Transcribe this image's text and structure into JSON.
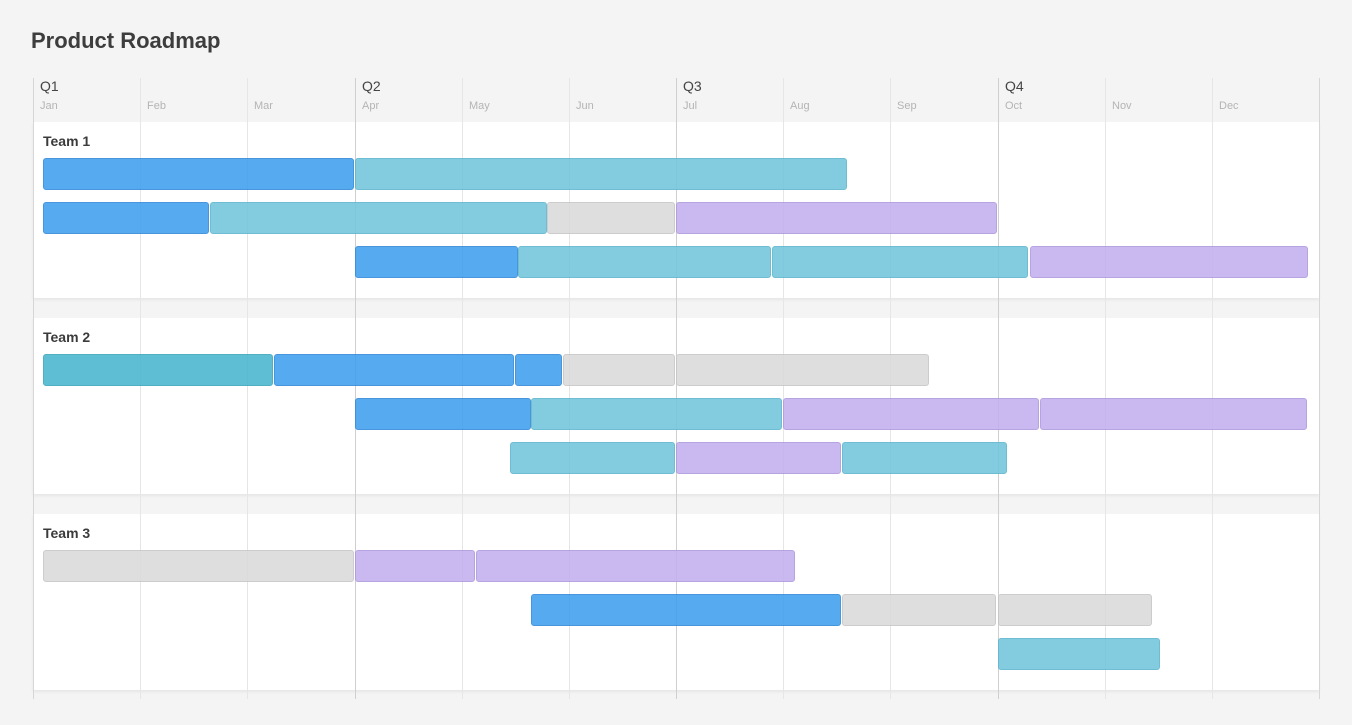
{
  "page": {
    "title": "Product Roadmap"
  },
  "quarters": [
    "Q1",
    "Q2",
    "Q3",
    "Q4"
  ],
  "months": [
    "Jan",
    "Feb",
    "Mar",
    "Apr",
    "May",
    "Jun",
    "Jul",
    "Aug",
    "Sep",
    "Oct",
    "Nov",
    "Dec"
  ],
  "colors": {
    "blue": "#3fa0ee",
    "teal": "#72c6dc",
    "cyan": "#47b6cf",
    "gray": "#dadada",
    "purple": "#c3b0ee"
  },
  "teams": [
    {
      "label": "Team 1",
      "rows": [
        [
          {
            "start": 0.0,
            "end": 3.0,
            "color": "blue"
          },
          {
            "start": 3.0,
            "end": 7.6,
            "color": "teal"
          }
        ],
        [
          {
            "start": 0.0,
            "end": 1.65,
            "color": "blue"
          },
          {
            "start": 1.65,
            "end": 4.8,
            "color": "teal"
          },
          {
            "start": 4.8,
            "end": 6.0,
            "color": "gray"
          },
          {
            "start": 6.0,
            "end": 9.0,
            "color": "purple"
          }
        ],
        [
          {
            "start": 3.0,
            "end": 4.53,
            "color": "blue"
          },
          {
            "start": 4.53,
            "end": 6.9,
            "color": "teal"
          },
          {
            "start": 6.9,
            "end": 9.3,
            "color": "teal"
          },
          {
            "start": 9.3,
            "end": 11.9,
            "color": "purple"
          }
        ]
      ]
    },
    {
      "label": "Team 2",
      "rows": [
        [
          {
            "start": 0.0,
            "end": 2.25,
            "color": "cyan"
          },
          {
            "start": 2.25,
            "end": 4.5,
            "color": "blue"
          },
          {
            "start": 4.5,
            "end": 4.95,
            "color": "blue"
          },
          {
            "start": 4.95,
            "end": 6.0,
            "color": "gray"
          },
          {
            "start": 6.0,
            "end": 8.37,
            "color": "gray"
          }
        ],
        [
          {
            "start": 3.0,
            "end": 4.65,
            "color": "blue"
          },
          {
            "start": 4.65,
            "end": 7.0,
            "color": "teal"
          },
          {
            "start": 7.0,
            "end": 9.4,
            "color": "purple"
          },
          {
            "start": 9.4,
            "end": 11.9,
            "color": "purple"
          }
        ],
        [
          {
            "start": 4.45,
            "end": 6.0,
            "color": "teal"
          },
          {
            "start": 6.0,
            "end": 7.55,
            "color": "purple"
          },
          {
            "start": 7.55,
            "end": 9.1,
            "color": "teal"
          }
        ]
      ]
    },
    {
      "label": "Team 3",
      "rows": [
        [
          {
            "start": 0.0,
            "end": 3.0,
            "color": "gray"
          },
          {
            "start": 3.0,
            "end": 4.13,
            "color": "purple"
          },
          {
            "start": 4.13,
            "end": 7.12,
            "color": "purple"
          }
        ],
        [
          {
            "start": 4.65,
            "end": 7.55,
            "color": "blue"
          },
          {
            "start": 7.55,
            "end": 9.0,
            "color": "gray"
          },
          {
            "start": 9.0,
            "end": 10.45,
            "color": "gray"
          }
        ],
        [
          {
            "start": 9.0,
            "end": 10.52,
            "color": "teal"
          }
        ]
      ]
    }
  ]
}
